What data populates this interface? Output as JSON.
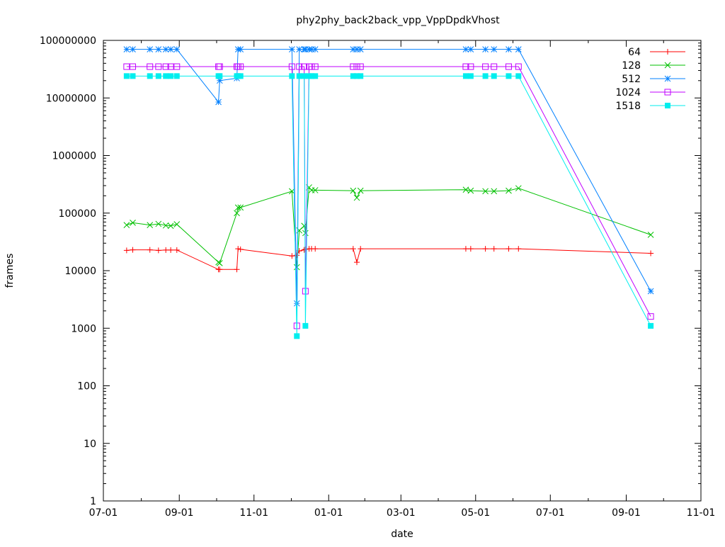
{
  "chart_data": {
    "type": "line",
    "title": "phy2phy_back2back_vpp_VppDpdkVhost",
    "xlabel": "date",
    "ylabel": "frames",
    "yscale": "log",
    "ylim": [
      1,
      100000000
    ],
    "xlim_days_since_first_tick": [
      0,
      488
    ],
    "x_ticks": [
      {
        "label": "07-01",
        "day": 0
      },
      {
        "label": "09-01",
        "day": 62
      },
      {
        "label": "11-01",
        "day": 123
      },
      {
        "label": "01-01",
        "day": 184
      },
      {
        "label": "03-01",
        "day": 243
      },
      {
        "label": "05-01",
        "day": 304
      },
      {
        "label": "07-01",
        "day": 365
      },
      {
        "label": "09-01",
        "day": 427
      },
      {
        "label": "11-01",
        "day": 488
      }
    ],
    "y_ticks": [
      "1",
      "10",
      "100",
      "1000",
      "10000",
      "100000",
      "1000000",
      "10000000",
      "100000000"
    ],
    "legend_position": "top-right",
    "x": [
      19,
      24,
      38,
      45,
      51,
      55,
      60,
      94,
      95,
      109,
      110,
      112,
      154,
      158,
      160,
      164,
      165,
      168,
      170,
      173,
      204,
      207,
      210,
      296,
      300,
      312,
      319,
      331,
      339,
      447
    ],
    "series": [
      {
        "name": "64",
        "color": "#ff0000",
        "marker": "plus",
        "values": [
          22500,
          23000,
          23000,
          22500,
          22800,
          22800,
          22800,
          10500,
          10500,
          10500,
          24000,
          23500,
          18000,
          18500,
          22000,
          23000,
          23500,
          24000,
          24000,
          24000,
          24000,
          14000,
          24000,
          24000,
          24000,
          24000,
          24000,
          24000,
          24000,
          20000
        ]
      },
      {
        "name": "128",
        "color": "#00c000",
        "marker": "cross",
        "values": [
          62000,
          68000,
          62000,
          65000,
          61000,
          60000,
          64000,
          14000,
          13500,
          100000,
          125000,
          125000,
          240000,
          11500,
          50000,
          60000,
          45000,
          280000,
          250000,
          250000,
          245000,
          185000,
          245000,
          255000,
          245000,
          240000,
          240000,
          245000,
          270000,
          42000
        ]
      },
      {
        "name": "512",
        "color": "#0080ff",
        "marker": "star",
        "values": [
          70000000,
          70000000,
          70000000,
          70000000,
          70000000,
          70000000,
          70000000,
          8500000,
          20000000,
          22000000,
          70000000,
          70000000,
          70000000,
          2700,
          70000000,
          70000000,
          70000000,
          70000000,
          70000000,
          70000000,
          70000000,
          70000000,
          70000000,
          70000000,
          70000000,
          70000000,
          70000000,
          70000000,
          70000000,
          4400
        ]
      },
      {
        "name": "1024",
        "color": "#c000ff",
        "marker": "box",
        "values": [
          35000000,
          35000000,
          35000000,
          35000000,
          35000000,
          35000000,
          35000000,
          35000000,
          35000000,
          35000000,
          35000000,
          35000000,
          35000000,
          1100,
          35000000,
          35000000,
          4400,
          35000000,
          35000000,
          35000000,
          35000000,
          35000000,
          35000000,
          35000000,
          35000000,
          35000000,
          35000000,
          35000000,
          35000000,
          1600
        ]
      },
      {
        "name": "1518",
        "color": "#00eeee",
        "marker": "filled-box",
        "values": [
          24000000,
          24000000,
          24000000,
          24000000,
          24000000,
          24000000,
          24000000,
          24000000,
          24000000,
          24000000,
          24000000,
          24000000,
          24000000,
          730,
          24000000,
          24000000,
          1100,
          24000000,
          24000000,
          24000000,
          24000000,
          24000000,
          24000000,
          24000000,
          24000000,
          24000000,
          24000000,
          24000000,
          24000000,
          1100
        ]
      }
    ]
  }
}
